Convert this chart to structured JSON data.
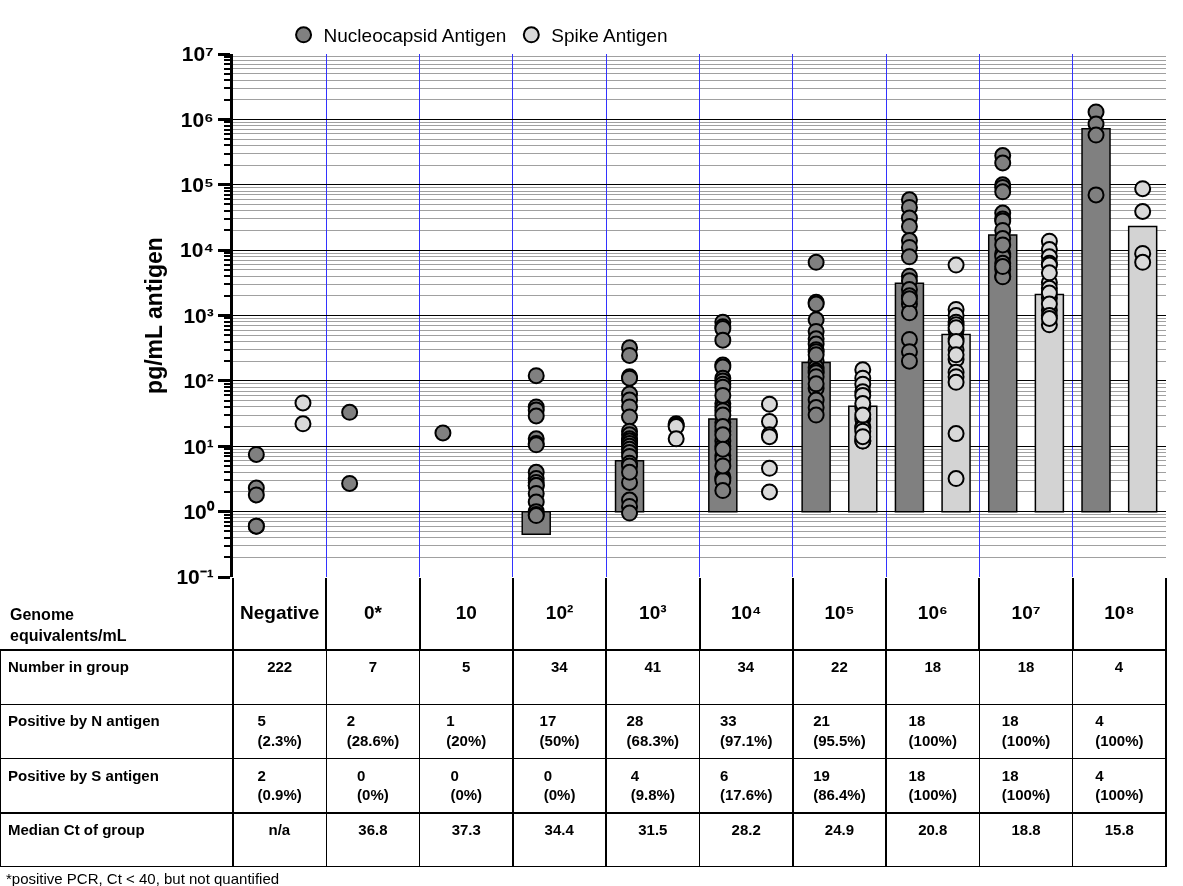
{
  "chart_data": {
    "type": "bar",
    "ylabel": "pg/mL antigen",
    "xlabel": "Genome\nequivalents/mL",
    "categories": [
      "Negative",
      "0*",
      "10",
      "10²",
      "10³",
      "10⁴",
      "10⁵",
      "10⁶",
      "10⁷",
      "10⁸"
    ],
    "log": true,
    "ylim": [
      0.1,
      10000000
    ],
    "yticks": [
      {
        "value": 0.1,
        "label": "10⁻¹"
      },
      {
        "value": 1,
        "label": "10⁰"
      },
      {
        "value": 10,
        "label": "10¹"
      },
      {
        "value": 100,
        "label": "10²"
      },
      {
        "value": 1000,
        "label": "10³"
      },
      {
        "value": 10000,
        "label": "10⁴"
      },
      {
        "value": 100000,
        "label": "10⁵"
      },
      {
        "value": 1000000,
        "label": "10⁶"
      },
      {
        "value": 10000000,
        "label": "10⁷"
      }
    ],
    "grid": true,
    "legend": "top",
    "marker": "circle",
    "series": [
      {
        "color": "#808080",
        "values": [
          null,
          null,
          null,
          -0.55,
          5,
          25,
          190,
          3100,
          17000,
          720000
        ],
        "base": [
          null,
          null,
          null,
          1,
          1,
          1,
          1,
          1,
          1,
          1
        ]
      },
      {
        "type": "scatter",
        "name": "Nucleocapsid Antigen",
        "color": "#808080",
        "x": [
          "Negative",
          "Negative",
          "Negative",
          "Negative",
          "Negative",
          "0*",
          "0*",
          "10",
          "10²",
          "10²",
          "10²",
          "10²",
          "10²",
          "10²",
          "10²",
          "10²",
          "10²",
          "10²",
          "10²",
          "10²",
          "10²",
          "10²",
          "10²",
          "10²",
          "10²",
          "10³",
          "10³",
          "10³",
          "10³",
          "10³",
          "10³",
          "10³",
          "10³",
          "10³",
          "10³",
          "10³",
          "10³",
          "10³",
          "10³",
          "10³",
          "10³",
          "10³",
          "10³",
          "10³",
          "10³",
          "10³",
          "10³",
          "10³",
          "10³",
          "10³",
          "10⁴",
          "10⁴",
          "10⁴",
          "10⁴",
          "10⁴",
          "10⁴",
          "10⁴",
          "10⁴",
          "10⁴",
          "10⁴",
          "10⁴",
          "10⁴",
          "10⁴",
          "10⁴",
          "10⁴",
          "10⁴",
          "10⁴",
          "10⁴",
          "10⁴",
          "10⁴",
          "10⁴",
          "10⁴",
          "10⁴",
          "10⁴",
          "10⁴",
          "10⁴",
          "10⁴",
          "10⁴",
          "10⁴",
          "10⁵",
          "10⁵",
          "10⁵",
          "10⁵",
          "10⁵",
          "10⁵",
          "10⁵",
          "10⁵",
          "10⁵",
          "10⁵",
          "10⁵",
          "10⁵",
          "10⁵",
          "10⁵",
          "10⁵",
          "10⁵",
          "10⁵",
          "10⁵",
          "10⁵",
          "10⁵",
          "10⁶",
          "10⁶",
          "10⁶",
          "10⁶",
          "10⁶",
          "10⁶",
          "10⁶",
          "10⁶",
          "10⁶",
          "10⁶",
          "10⁶",
          "10⁶",
          "10⁶",
          "10⁶",
          "10⁶",
          "10⁶",
          "10⁶",
          "10⁷",
          "10⁷",
          "10⁷",
          "10⁷",
          "10⁷",
          "10⁷",
          "10⁷",
          "10⁷",
          "10⁷",
          "10⁷",
          "10⁷",
          "10⁷",
          "10⁷",
          "10⁷",
          "10⁷",
          "10⁷",
          "10⁷",
          "10⁷",
          "10⁸",
          "10⁸",
          "10⁸",
          "10⁸"
        ],
        "values": [
          7.5,
          2.3,
          1.8,
          0.6,
          0.6,
          33,
          2.7,
          16,
          120,
          40,
          36,
          29,
          13,
          11,
          10.5,
          4,
          3.2,
          2.8,
          2.5,
          2.5,
          1.9,
          1.4,
          1.0,
          0.9,
          0.87,
          320,
          245,
          116,
          110,
          63,
          51,
          40,
          28,
          17,
          15,
          13,
          12,
          12,
          2.8,
          1.5,
          1.2,
          0.95,
          11,
          10,
          9,
          8,
          7,
          5.5,
          5,
          4,
          790,
          675,
          630,
          420,
          175,
          163,
          110,
          100,
          89,
          45,
          39,
          23,
          17,
          12,
          10,
          7.2,
          6.3,
          3.4,
          3.2,
          3.0,
          2.1,
          80,
          60,
          35,
          30,
          20,
          15,
          9,
          5,
          6500,
          1600,
          1500,
          860,
          570,
          440,
          365,
          300,
          280,
          200,
          160,
          142,
          133,
          116,
          77,
          51,
          39,
          30,
          250,
          90,
          59000,
          45000,
          31000,
          23000,
          14000,
          11000,
          7900,
          4000,
          3400,
          2500,
          1500,
          1100,
          430,
          280,
          200,
          2000,
          1800,
          280000,
          215000,
          100000,
          91000,
          78000,
          37000,
          30000,
          28000,
          20000,
          15000,
          8900,
          7900,
          6300,
          5100,
          4000,
          3900,
          12000,
          5600,
          1300000,
          850000,
          575000,
          70000
        ]
      },
      {
        "color": "#d3d3d3",
        "values": [
          null,
          null,
          null,
          null,
          null,
          null,
          40,
          510,
          2100,
          23000
        ],
        "base": [
          null,
          null,
          null,
          null,
          null,
          null,
          1,
          1,
          1,
          1
        ]
      },
      {
        "type": "scatter",
        "name": "Spike Antigen",
        "color": "#d9d9d9",
        "x": [
          "Negative",
          "Negative",
          "10³",
          "10³",
          "10³",
          "10³",
          "10⁴",
          "10⁴",
          "10⁴",
          "10⁴",
          "10⁴",
          "10⁴",
          "10⁵",
          "10⁵",
          "10⁵",
          "10⁵",
          "10⁵",
          "10⁵",
          "10⁵",
          "10⁵",
          "10⁵",
          "10⁵",
          "10⁵",
          "10⁵",
          "10⁵",
          "10⁵",
          "10⁵",
          "10⁶",
          "10⁶",
          "10⁶",
          "10⁶",
          "10⁶",
          "10⁶",
          "10⁶",
          "10⁶",
          "10⁶",
          "10⁶",
          "10⁶",
          "10⁶",
          "10⁶",
          "10⁶",
          "10⁶",
          "10⁶",
          "10⁶",
          "10⁷",
          "10⁷",
          "10⁷",
          "10⁷",
          "10⁷",
          "10⁷",
          "10⁷",
          "10⁷",
          "10⁷",
          "10⁷",
          "10⁷",
          "10⁷",
          "10⁷",
          "10⁷",
          "10⁷",
          "10⁸",
          "10⁸",
          "10⁸",
          "10⁸"
        ],
        "values": [
          46,
          22,
          22,
          21,
          20,
          13,
          44,
          24,
          15,
          14,
          4.6,
          2.0,
          148,
          110,
          89,
          68,
          39,
          26,
          20,
          19,
          17,
          12,
          12,
          60,
          45,
          30,
          14,
          5900,
          1240,
          1000,
          790,
          720,
          590,
          440,
          300,
          215,
          136,
          116,
          95,
          15.6,
          3.2,
          650,
          400,
          250,
          13700,
          10200,
          7900,
          6300,
          5900,
          3200,
          2600,
          1850,
          1200,
          720,
          2200,
          1500,
          1000,
          900,
          4500,
          87000,
          39000,
          8900,
          6500
        ]
      }
    ],
    "annotations": [
      "Number in group",
      "222",
      "7",
      "5",
      "34",
      "41",
      "34",
      "22",
      "18",
      "18",
      "4",
      "Positive by N antigen",
      "5\n(2.3%)",
      "2\n(28.6%)",
      "1\n(20%)",
      "17\n(50%)",
      "28\n(68.3%)",
      "33\n(97.1%)",
      "21\n(95.5%)",
      "18\n(100%)",
      "18\n(100%)",
      "4\n(100%)",
      "Positive by S antigen",
      "2\n(0.9%)",
      "0\n(0%)",
      "0\n(0%)",
      "0\n(0%)",
      "4\n(9.8%)",
      "6\n(17.6%)",
      "19\n(86.4%)",
      "18\n(100%)",
      "18\n(100%)",
      "4\n(100%)",
      "Median Ct of group",
      "n/a",
      "36.8",
      "37.3",
      "34.4",
      "31.5",
      "28.2",
      "24.9",
      "20.8",
      "18.8",
      "15.8",
      "*positive PCR, Ct < 40, but not quantified"
    ]
  }
}
